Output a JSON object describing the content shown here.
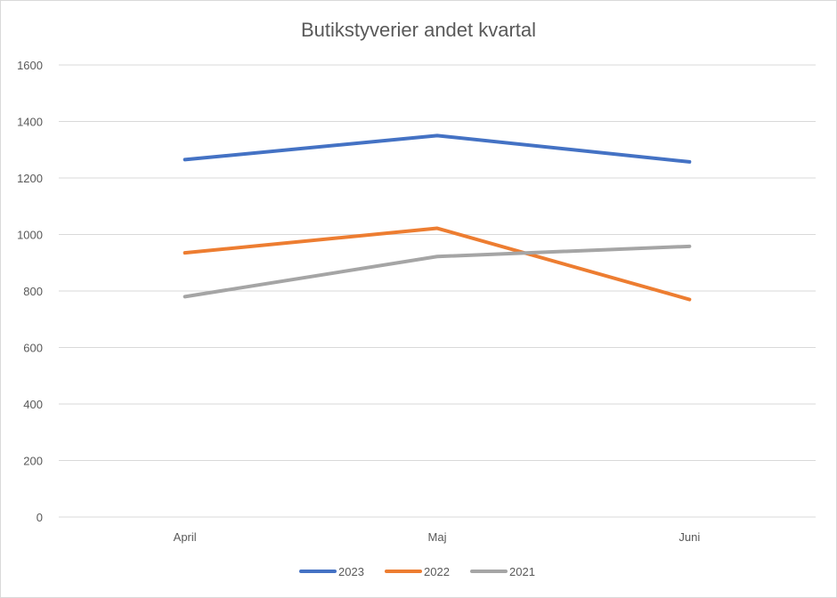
{
  "chart_data": {
    "type": "line",
    "title": "Butikstyverier andet kvartal",
    "categories": [
      "April",
      "Maj",
      "Juni"
    ],
    "ylim": [
      0,
      1600
    ],
    "yticks": [
      "0",
      "200",
      "400",
      "600",
      "800",
      "1000",
      "1200",
      "1400",
      "1600"
    ],
    "grid": true,
    "legend_position": "bottom",
    "series": [
      {
        "name": "2023",
        "color": "#4472C4",
        "values": [
          1265,
          1350,
          1257
        ]
      },
      {
        "name": "2022",
        "color": "#ED7D31",
        "values": [
          935,
          1022,
          770
        ]
      },
      {
        "name": "2021",
        "color": "#A5A5A5",
        "values": [
          780,
          922,
          958
        ]
      }
    ]
  }
}
